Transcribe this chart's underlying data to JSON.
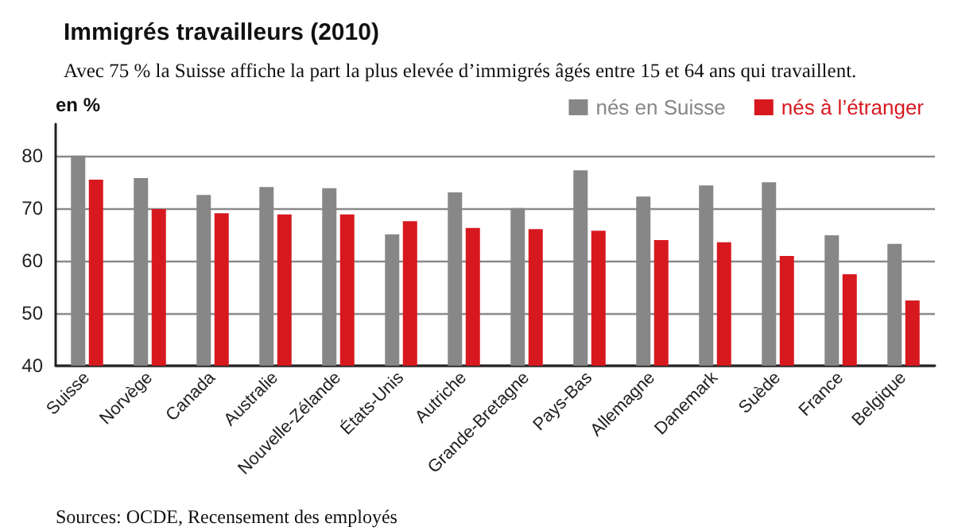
{
  "chart_data": {
    "type": "bar",
    "title": "Immigrés travailleurs (2010)",
    "subtitle": "Avec 75 % la Suisse affiche la part la plus elevée d’immigrés âgés entre 15 et 64 ans qui travaillent.",
    "ylabel": "en %",
    "categories": [
      "Suisse",
      "Norvège",
      "Canada",
      "Australie",
      "Nouvelle-Zélande",
      "États-Unis",
      "Autriche",
      "Grande-Bretagne",
      "Pays-Bas",
      "Allemagne",
      "Danemark",
      "Suède",
      "France",
      "Belgique"
    ],
    "series": [
      {
        "name": "nés en Suisse",
        "color": "#878787",
        "values": [
          80,
          75.7,
          72.5,
          74,
          73.8,
          65,
          73,
          70,
          77.2,
          72.2,
          74.3,
          74.9,
          64.8,
          63.2
        ]
      },
      {
        "name": "nés à l’étranger",
        "color": "#d7191f",
        "values": [
          75.4,
          69.8,
          69,
          68.8,
          68.8,
          67.5,
          66.2,
          66,
          65.7,
          63.9,
          63.5,
          60.9,
          57.4,
          52.4
        ]
      }
    ],
    "ylim": [
      40,
      86
    ],
    "yticks": [
      40,
      50,
      60,
      70,
      80
    ],
    "grid": "y",
    "legend": "top right",
    "annotations": [
      "Sources: OCDE, Recensement des employés"
    ]
  }
}
